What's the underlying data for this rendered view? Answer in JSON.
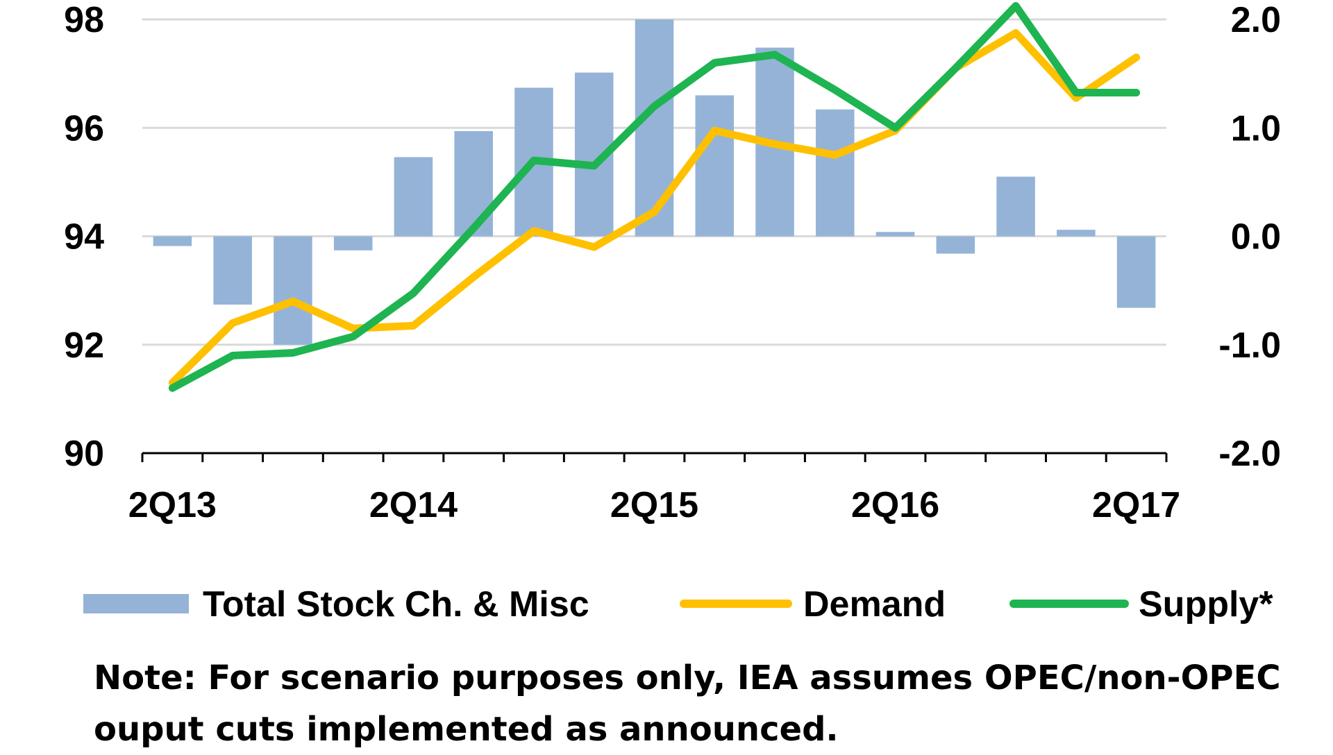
{
  "chart_data": {
    "type": "bar+line",
    "categories": [
      "2Q13",
      "3Q13",
      "4Q13",
      "1Q14",
      "2Q14",
      "3Q14",
      "4Q14",
      "1Q15",
      "2Q15",
      "3Q15",
      "4Q15",
      "1Q16",
      "2Q16",
      "3Q16",
      "4Q16",
      "1Q17",
      "2Q17"
    ],
    "x_tick_labels": [
      "2Q13",
      "2Q14",
      "2Q15",
      "2Q16",
      "2Q17"
    ],
    "left_axis": {
      "range": [
        90,
        98
      ],
      "ticks": [
        "90",
        "92",
        "94",
        "96",
        "98"
      ]
    },
    "right_axis": {
      "range": [
        -2.0,
        2.0
      ],
      "ticks": [
        "-2.0",
        "-1.0",
        "0.0",
        "1.0",
        "2.0"
      ]
    },
    "grid": true,
    "series": [
      {
        "name": "Total Stock Ch. & Misc",
        "type": "bar",
        "axis": "right",
        "color": "#95b3d7",
        "values": [
          -0.09,
          -0.63,
          -1.0,
          -0.13,
          0.73,
          0.97,
          1.37,
          1.51,
          2.0,
          1.3,
          1.74,
          1.17,
          0.04,
          -0.16,
          0.55,
          0.06,
          -0.66
        ]
      },
      {
        "name": "Demand",
        "type": "line",
        "axis": "left",
        "color": "#ffc000",
        "values": [
          91.3,
          92.4,
          92.8,
          92.3,
          92.35,
          93.25,
          94.1,
          93.8,
          94.45,
          95.95,
          95.7,
          95.5,
          95.95,
          97.1,
          97.75,
          96.55,
          97.3
        ]
      },
      {
        "name": "Supply*",
        "type": "line",
        "axis": "left",
        "color": "#1eb451",
        "values": [
          91.2,
          91.8,
          91.85,
          92.15,
          92.95,
          94.15,
          95.4,
          95.3,
          96.4,
          97.2,
          97.35,
          96.7,
          96.0,
          97.1,
          98.25,
          96.65,
          96.65
        ]
      }
    ],
    "legend": {
      "position": "bottom"
    }
  },
  "note": {
    "line1": "Note: For scenario purposes only, IEA assumes OPEC/non-OPEC",
    "line2": "ouput cuts implemented as announced."
  }
}
